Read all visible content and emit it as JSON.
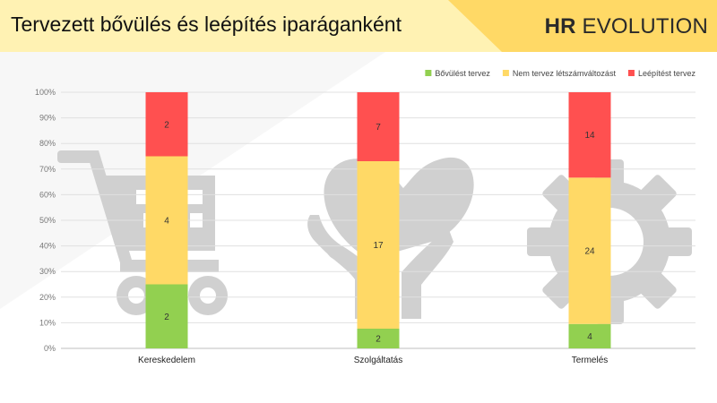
{
  "header": {
    "title": "Tervezett bővülés és leépítés iparáganként",
    "brand_bold": "HR",
    "brand_rest": " EVOLUTION"
  },
  "colors": {
    "header_bg": "#fff2b3",
    "header_accent": "#ffd966",
    "green": "#92d050",
    "yellow": "#ffd966",
    "red": "#ff5050",
    "icon_gray": "#d0d0d0"
  },
  "icons": [
    "shopping-cart-icon",
    "heart-hands-icon",
    "gear-icon"
  ],
  "chart_data": {
    "type": "bar",
    "stacked": "percent",
    "categories": [
      "Kereskedelem",
      "Szolgáltatás",
      "Termelés"
    ],
    "series": [
      {
        "name": "Bővülést tervez",
        "values": [
          2,
          2,
          4
        ],
        "color": "#92d050"
      },
      {
        "name": "Nem tervez létszámváltozást",
        "values": [
          4,
          17,
          24
        ],
        "color": "#ffd966"
      },
      {
        "name": "Leépítést tervez",
        "values": [
          2,
          7,
          14
        ],
        "color": "#ff5050"
      }
    ],
    "yticks": [
      "0%",
      "10%",
      "20%",
      "30%",
      "40%",
      "50%",
      "60%",
      "70%",
      "80%",
      "90%",
      "100%"
    ],
    "ylim": [
      0,
      100
    ],
    "grid": true,
    "legend": "top-right"
  }
}
